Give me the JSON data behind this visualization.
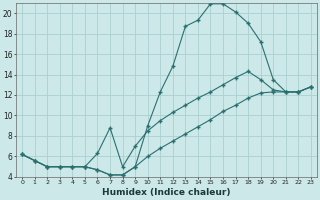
{
  "xlabel": "Humidex (Indice chaleur)",
  "background_color": "#cde8e8",
  "grid_color": "#aacfcf",
  "line_color": "#2a7070",
  "xlim_min": -0.5,
  "xlim_max": 23.5,
  "ylim_min": 4,
  "ylim_max": 21,
  "xticks": [
    0,
    1,
    2,
    3,
    4,
    5,
    6,
    7,
    8,
    9,
    10,
    11,
    12,
    13,
    14,
    15,
    16,
    17,
    18,
    19,
    20,
    21,
    22,
    23
  ],
  "yticks": [
    4,
    6,
    8,
    10,
    12,
    14,
    16,
    18,
    20
  ],
  "line1_x": [
    0,
    1,
    2,
    3,
    4,
    5,
    6,
    7,
    8,
    9,
    10,
    11,
    12,
    13,
    14,
    15,
    16,
    17,
    18,
    19,
    20,
    21,
    22,
    23
  ],
  "line1_y": [
    6.2,
    5.6,
    5.0,
    5.0,
    5.0,
    5.0,
    4.7,
    4.2,
    4.2,
    5.0,
    9.0,
    12.3,
    14.8,
    18.7,
    19.3,
    20.9,
    20.9,
    20.1,
    19.0,
    17.2,
    13.5,
    12.3,
    12.3,
    12.8
  ],
  "line2_x": [
    0,
    1,
    2,
    3,
    4,
    5,
    6,
    7,
    8,
    9,
    10,
    11,
    12,
    13,
    14,
    15,
    16,
    17,
    18,
    19,
    20,
    21,
    22,
    23
  ],
  "line2_y": [
    6.2,
    5.6,
    5.0,
    5.0,
    5.0,
    5.0,
    6.3,
    8.8,
    5.0,
    7.0,
    8.5,
    9.5,
    10.3,
    11.0,
    11.7,
    12.3,
    13.0,
    13.7,
    14.3,
    13.5,
    12.5,
    12.3,
    12.3,
    12.8
  ],
  "line3_x": [
    0,
    1,
    2,
    3,
    4,
    5,
    6,
    7,
    8,
    9,
    10,
    11,
    12,
    13,
    14,
    15,
    16,
    17,
    18,
    19,
    20,
    21,
    22,
    23
  ],
  "line3_y": [
    6.2,
    5.6,
    5.0,
    5.0,
    5.0,
    5.0,
    4.7,
    4.2,
    4.2,
    5.0,
    6.0,
    6.8,
    7.5,
    8.2,
    8.9,
    9.6,
    10.4,
    11.0,
    11.7,
    12.2,
    12.3,
    12.3,
    12.3,
    12.8
  ]
}
